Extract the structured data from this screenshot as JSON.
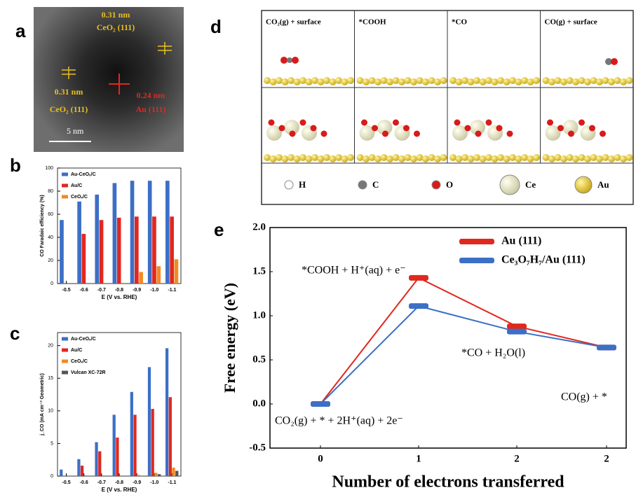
{
  "panel_labels": [
    "a",
    "b",
    "c",
    "d",
    "e"
  ],
  "panel_a": {
    "annotations": [
      "0.31 nm",
      "CeO₂ (111)",
      "0.31 nm",
      "CeO₂ (111)",
      "0.24 nm",
      "Au (111)"
    ],
    "scale_bar": "5 nm"
  },
  "panel_d": {
    "states": [
      "CO₂(g) + surface",
      "*COOH",
      "*CO",
      "CO(g) + surface"
    ],
    "legend": [
      "H",
      "C",
      "O",
      "Ce",
      "Au"
    ]
  },
  "chart_data": [
    {
      "type": "bar",
      "ylabel": "CO Faradaic efficiency (%)",
      "xlabel": "E (V vs. RHE)",
      "categories": [
        "-0.5",
        "-0.6",
        "-0.7",
        "-0.8",
        "-0.9",
        "-1.0",
        "-1.1"
      ],
      "series": [
        {
          "name": "Au-CeOₓ/C",
          "color": "#3c6fc6",
          "values": [
            55,
            71,
            77,
            87,
            89,
            89,
            89
          ]
        },
        {
          "name": "Au/C",
          "color": "#e0281f",
          "values": [
            null,
            43,
            55,
            57,
            58,
            58,
            58
          ]
        },
        {
          "name": "CeOₓ/C",
          "color": "#f28a22",
          "values": [
            null,
            null,
            null,
            null,
            10,
            15,
            21
          ]
        }
      ],
      "ylim": [
        0,
        100
      ],
      "yticks": [
        0,
        20,
        40,
        60,
        80,
        100
      ]
    },
    {
      "type": "bar",
      "ylabel": "j_CO (mA cm⁻² Geometric)",
      "xlabel": "E (V vs. RHE)",
      "categories": [
        "-0.5",
        "-0.6",
        "-0.7",
        "-0.8",
        "-0.9",
        "-1.0",
        "-1.1"
      ],
      "series": [
        {
          "name": "Au-CeOₓ/C",
          "color": "#3c6fc6",
          "values": [
            1,
            2.6,
            5.2,
            9.4,
            12.9,
            16.7,
            19.6
          ]
        },
        {
          "name": "Au/C",
          "color": "#e0281f",
          "values": [
            null,
            1.6,
            3.8,
            5.9,
            9.4,
            10.3,
            12.1
          ]
        },
        {
          "name": "CeOₓ/C",
          "color": "#f28a22",
          "values": [
            null,
            null,
            null,
            null,
            0.2,
            0.5,
            1.3
          ]
        },
        {
          "name": "Vulcan XC-72R",
          "color": "#555555",
          "values": [
            null,
            null,
            null,
            null,
            null,
            0.3,
            0.8
          ]
        }
      ],
      "ylim": [
        0,
        22
      ],
      "yticks": [
        0,
        5,
        10,
        15,
        20
      ]
    },
    {
      "type": "line",
      "ylabel": "Free energy (eV)",
      "xlabel": "Number of electrons transferred",
      "categories": [
        "0",
        "1",
        "2",
        "2"
      ],
      "series": [
        {
          "name": "Au (111)",
          "color": "#e0281f",
          "values": [
            0,
            1.43,
            0.88,
            0.64
          ]
        },
        {
          "name": "Ce₃O₇H₇/Au (111)",
          "color": "#3c6fc6",
          "values": [
            0,
            1.11,
            0.82,
            0.64
          ]
        }
      ],
      "annotations": [
        "*COOH + H⁺(aq) + e⁻",
        "*CO + H₂O(l)",
        "CO(g) + *",
        "CO₂(g) + * + 2H⁺(aq) + 2e⁻"
      ],
      "ylim": [
        -0.5,
        2.0
      ],
      "yticks": [
        -0.5,
        {
          "value": 0,
          "label": "0.0"
        },
        0.5,
        {
          "value": 1,
          "label": "1.0"
        },
        1.5,
        {
          "value": 2,
          "label": "2.0"
        }
      ]
    }
  ]
}
